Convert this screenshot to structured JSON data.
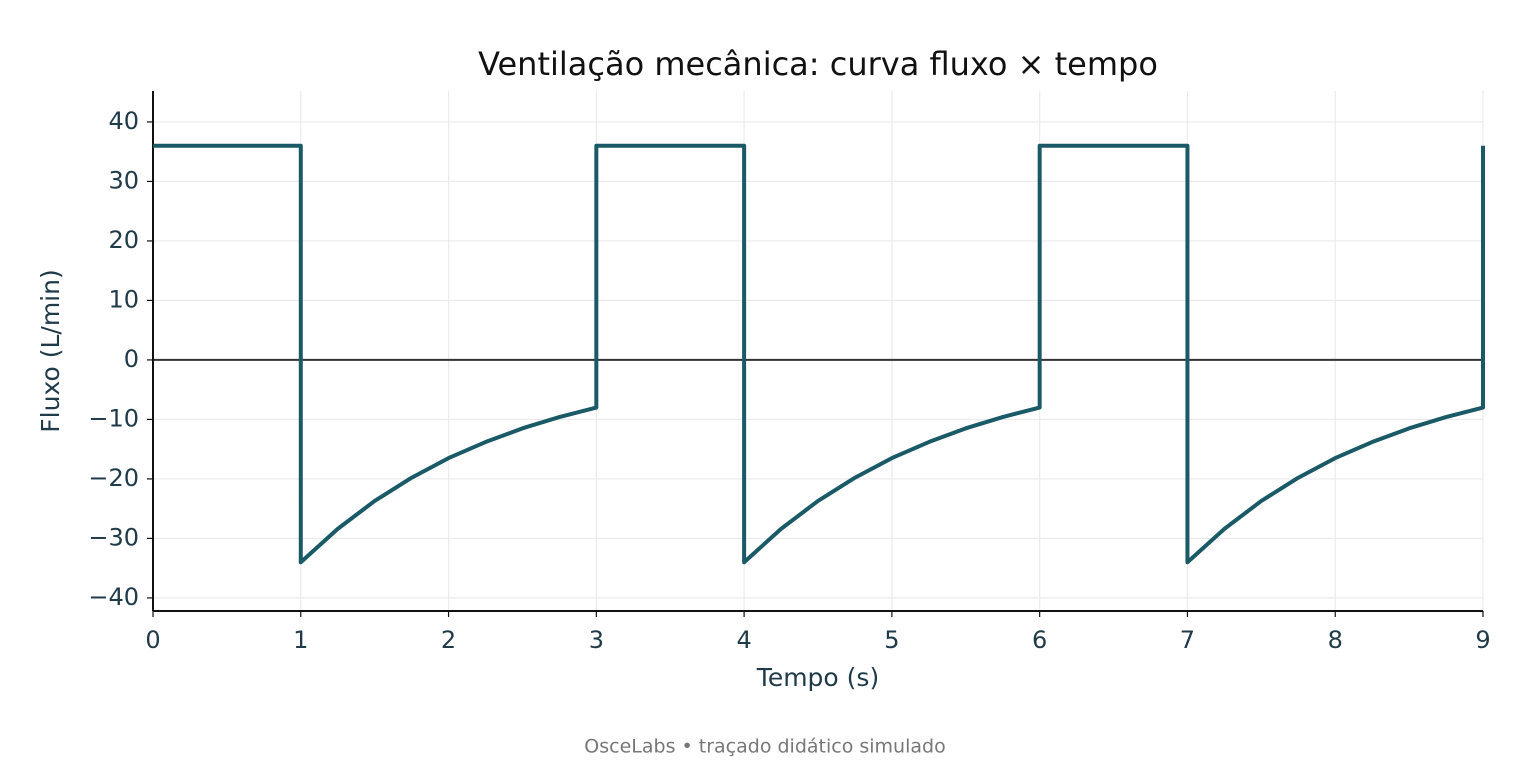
{
  "chart_data": {
    "type": "line",
    "title": "Ventilação mecânica: curva fluxo × tempo",
    "xlabel": "Tempo (s)",
    "ylabel": "Fluxo (L/min)",
    "footnote": "OsceLabs • traçado didático simulado",
    "x": [
      0,
      1,
      1,
      1.25,
      1.5,
      1.75,
      2,
      2.25,
      2.5,
      2.75,
      3,
      3,
      4,
      4,
      4.25,
      4.5,
      4.75,
      5,
      5.25,
      5.5,
      5.75,
      6,
      6,
      7,
      7,
      7.25,
      7.5,
      7.75,
      8,
      8.25,
      8.5,
      8.75,
      9,
      9
    ],
    "values": [
      36,
      36,
      -34,
      -28.4,
      -23.7,
      -19.8,
      -16.5,
      -13.8,
      -11.5,
      -9.6,
      -8.0,
      36,
      36,
      -34,
      -28.4,
      -23.7,
      -19.8,
      -16.5,
      -13.8,
      -11.5,
      -9.6,
      -8.0,
      36,
      36,
      -34,
      -28.4,
      -23.7,
      -19.8,
      -16.5,
      -13.8,
      -11.5,
      -9.6,
      -8.0,
      36
    ],
    "color": "#1a5966",
    "xlim": [
      0,
      9
    ],
    "xticks": [
      0,
      1,
      2,
      3,
      4,
      5,
      6,
      7,
      8,
      9
    ],
    "ylim": [
      -42.2,
      45.2
    ],
    "yticks": [
      {
        "value": -40,
        "label": "−40"
      },
      {
        "value": -30,
        "label": "−30"
      },
      {
        "value": -20,
        "label": "−20"
      },
      {
        "value": -10,
        "label": "−10"
      },
      0,
      10,
      20,
      30,
      40
    ],
    "grid": true,
    "zero_line": true
  }
}
